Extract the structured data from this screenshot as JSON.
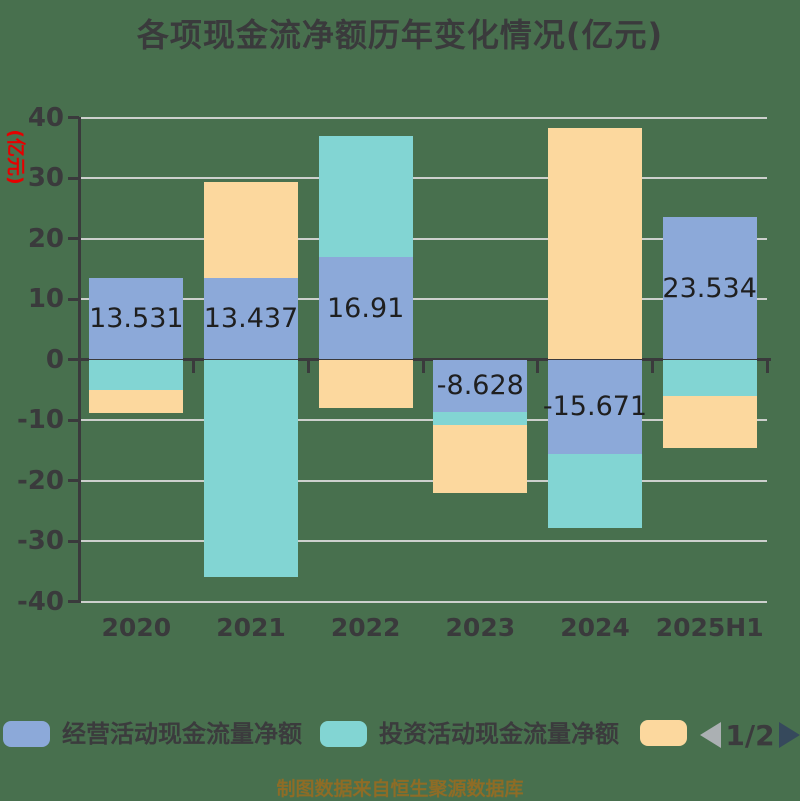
{
  "title": "各项现金流净额历年变化情况(亿元)",
  "y_axis": {
    "label": "(亿元)",
    "label_color": "#e60000",
    "tick_labels": [
      "40",
      "30",
      "20",
      "10",
      "0",
      "-10",
      "-20",
      "-30",
      "-40"
    ],
    "tick_values": [
      40,
      30,
      20,
      10,
      0,
      -10,
      -20,
      -30,
      -40
    ]
  },
  "chart_data": {
    "type": "bar",
    "stacked": true,
    "title": "各项现金流净额历年变化情况(亿元)",
    "ylabel": "(亿元)",
    "ylim": [
      -40,
      40
    ],
    "grid": true,
    "categories": [
      "2020",
      "2021",
      "2022",
      "2023",
      "2024",
      "2025H1"
    ],
    "series": [
      {
        "name": "经营活动现金流量净额",
        "color": "#8ca9d9",
        "values": [
          13.531,
          13.437,
          16.91,
          -8.628,
          -15.671,
          23.534
        ],
        "data_labels": [
          "13.531",
          "13.437",
          "16.91",
          "-8.628",
          "-15.671",
          "23.534"
        ]
      },
      {
        "name": "投资活动现金流量净额",
        "color": "#82d5d3",
        "values": [
          -5.0,
          -35.9,
          20.1,
          -2.2,
          -12.2,
          -6.1
        ],
        "data_labels": []
      },
      {
        "name": "",
        "color": "#fcd89e",
        "values": [
          -3.8,
          15.9,
          -8.0,
          -11.3,
          38.3,
          -8.6
        ],
        "data_labels": []
      }
    ],
    "legend_position": "bottom"
  },
  "legend": {
    "items": [
      {
        "label": "经营活动现金流量净额",
        "color": "#8ca9d9"
      },
      {
        "label": "投资活动现金流量净额",
        "color": "#82d5d3"
      },
      {
        "label": "",
        "color": "#fcd89e"
      }
    ],
    "pagination": {
      "text": "1/2",
      "prev_color": "#abb0b3",
      "next_color": "#36495c"
    }
  },
  "footer": {
    "text": "制图数据来自恒生聚源数据库",
    "color": "#8e6c26"
  },
  "colors": {
    "background": "#48704e",
    "gridline": "#cdd0cd",
    "axis": "#3a3a3c",
    "title_text": "#3a3a3c",
    "tick_text": "#3a3a3c",
    "bar_label_text": "#1f1f1f"
  }
}
